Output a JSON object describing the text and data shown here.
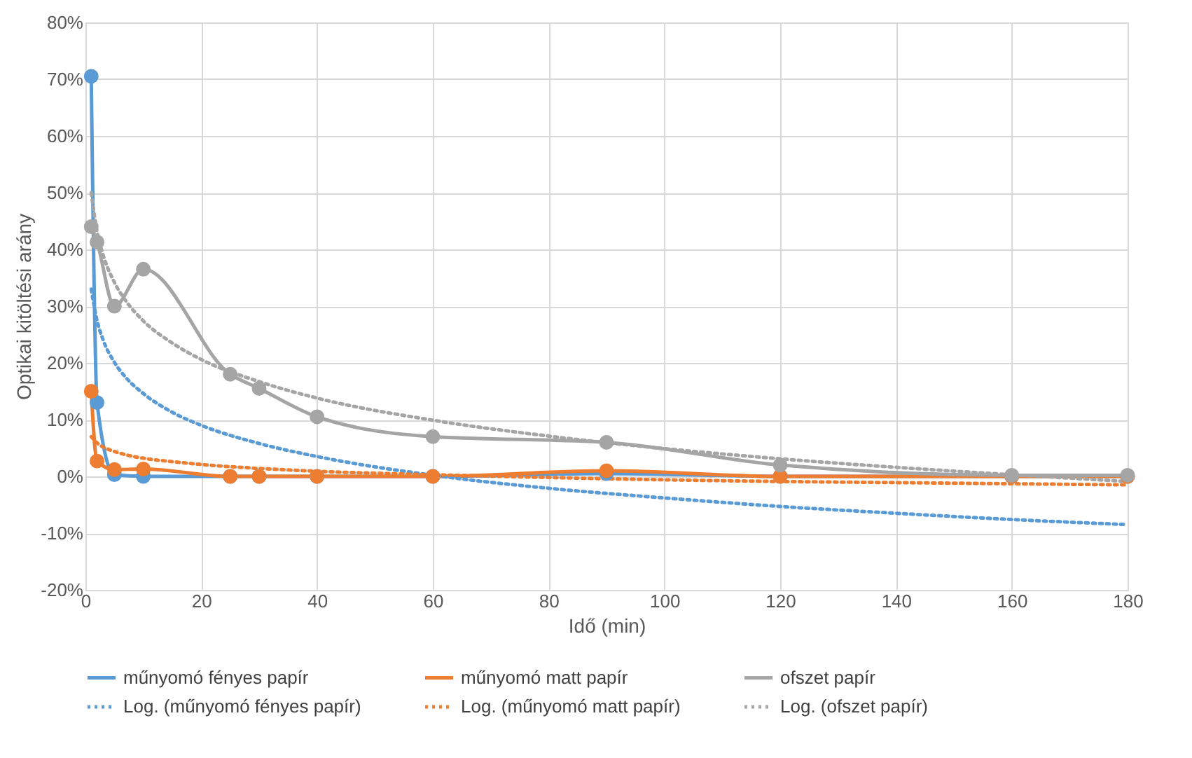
{
  "chart_data": {
    "type": "line",
    "xlabel": "Idő (min)",
    "ylabel": "Optikai kitöltési arány",
    "xlim": [
      0,
      180
    ],
    "xticks": [
      0,
      20,
      40,
      60,
      80,
      100,
      120,
      140,
      160,
      180
    ],
    "ylim": [
      -20,
      80
    ],
    "yticks": [
      {
        "value": -20,
        "label": "-20%"
      },
      {
        "value": -10,
        "label": "-10%"
      },
      {
        "value": 0,
        "label": "0%"
      },
      {
        "value": 10,
        "label": "10%"
      },
      {
        "value": 20,
        "label": "20%"
      },
      {
        "value": 30,
        "label": "30%"
      },
      {
        "value": 40,
        "label": "40%"
      },
      {
        "value": 50,
        "label": "50%"
      },
      {
        "value": 60,
        "label": "60%"
      },
      {
        "value": 70,
        "label": "70%"
      },
      {
        "value": 80,
        "label": "80%"
      }
    ],
    "grid": true,
    "legend": "bottom",
    "series": [
      {
        "name": "műnyomó fényes papír",
        "color": "#5b9bd5",
        "marker": "circle",
        "line_style": "solid",
        "x": [
          1,
          2,
          5,
          10,
          25,
          30,
          40,
          60,
          90,
          120,
          160,
          180
        ],
        "values": [
          70.5,
          13,
          0.3,
          0,
          0,
          0,
          0,
          0,
          0.5,
          0,
          0,
          0
        ]
      },
      {
        "name": "műnyomó matt papír",
        "color": "#ed7d31",
        "marker": "circle",
        "line_style": "solid",
        "x": [
          1,
          2,
          5,
          10,
          25,
          30,
          40,
          60,
          90,
          120,
          160,
          180
        ],
        "values": [
          15,
          2.7,
          1.2,
          1.3,
          0,
          0,
          0,
          0,
          1,
          0,
          0,
          0
        ]
      },
      {
        "name": "ofszet papír",
        "color": "#a5a5a5",
        "marker": "circle",
        "line_style": "solid",
        "x": [
          1,
          2,
          5,
          10,
          25,
          30,
          40,
          60,
          90,
          120,
          160,
          180
        ],
        "values": [
          44,
          41.3,
          30,
          36.5,
          18,
          15.5,
          10.5,
          7,
          6,
          2,
          0.2,
          0.2
        ]
      },
      {
        "name": "Log. (műnyomó fényes papír)",
        "color": "#5b9bd5",
        "marker": "none",
        "line_style": "dotted",
        "x": [
          1,
          2,
          3,
          5,
          7,
          10,
          15,
          20,
          30,
          40,
          60,
          80,
          100,
          120,
          140,
          160,
          180
        ],
        "values": [
          33,
          27.5,
          24.2,
          20.1,
          17.4,
          14.6,
          11.3,
          9.0,
          5.8,
          3.5,
          0.2,
          -2.1,
          -3.8,
          -5.3,
          -6.5,
          -7.6,
          -8.5
        ]
      },
      {
        "name": "Log. (műnyomó matt papír)",
        "color": "#ed7d31",
        "marker": "none",
        "line_style": "dotted",
        "x": [
          1,
          2,
          3,
          5,
          7,
          10,
          15,
          20,
          30,
          40,
          60,
          80,
          100,
          120,
          140,
          160,
          180
        ],
        "values": [
          7,
          5.9,
          5.2,
          4.4,
          3.8,
          3.2,
          2.6,
          2.1,
          1.4,
          0.9,
          0.3,
          -0.2,
          -0.6,
          -0.9,
          -1.1,
          -1.3,
          -1.5
        ]
      },
      {
        "name": "Log. (ofszet papír)",
        "color": "#a5a5a5",
        "marker": "none",
        "line_style": "dotted",
        "x": [
          1,
          2,
          3,
          5,
          7,
          10,
          15,
          20,
          30,
          40,
          60,
          80,
          100,
          120,
          140,
          160,
          180
        ],
        "values": [
          50,
          43.2,
          39.2,
          34.2,
          30.9,
          27.4,
          23.5,
          20.6,
          16.7,
          13.8,
          9.9,
          7.1,
          4.9,
          3.1,
          1.6,
          0.3,
          -0.9
        ]
      }
    ]
  }
}
